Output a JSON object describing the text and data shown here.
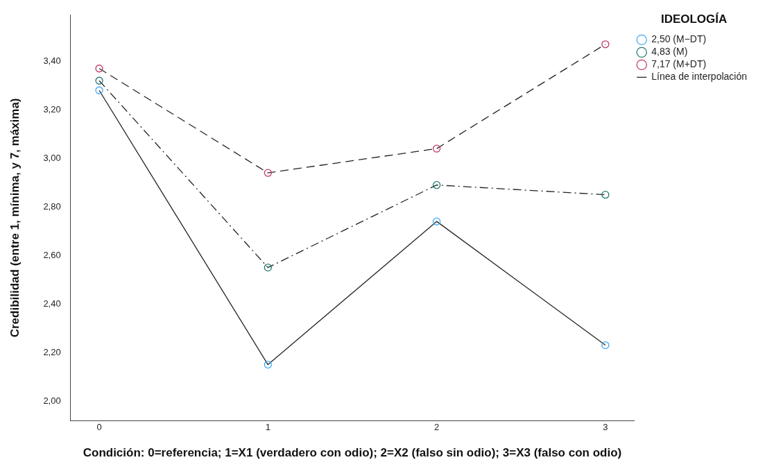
{
  "chart_data": {
    "type": "line",
    "xlabel": "Condición: 0=referencia; 1=X1 (verdadero con odio); 2=X2 (falso sin odio); 3=X3 (falso con odio)",
    "ylabel": "Credibilidad (entre 1, mínima, y 7, máxima)",
    "legend_title": "IDEOLOGÍA",
    "legend": "top right",
    "marker": "circle",
    "grid": false,
    "x": [
      0,
      1,
      2,
      3
    ],
    "xlim": [
      -0.17,
      3.17
    ],
    "xticks": [
      0,
      1,
      2,
      3
    ],
    "ylim": [
      1.92,
      3.59
    ],
    "yticks": [
      {
        "value": 2,
        "label": "2,00"
      },
      {
        "value": 2.2,
        "label": "2,20"
      },
      {
        "value": 2.4,
        "label": "2,40"
      },
      {
        "value": 2.6,
        "label": "2,60"
      },
      {
        "value": 2.8,
        "label": "2,80"
      },
      {
        "value": 3,
        "label": "3,00"
      },
      {
        "value": 3.2,
        "label": "3,20"
      },
      {
        "value": 3.4,
        "label": "3,40"
      }
    ],
    "series": [
      {
        "name": "2,50 (M−DT)",
        "color": "#3fa9f5",
        "line_style": "solid",
        "values": [
          3.28,
          2.15,
          2.74,
          2.23
        ]
      },
      {
        "name": "4,83 (M)",
        "color": "#1f7a70",
        "line_style": "dashdot",
        "values": [
          3.32,
          2.55,
          2.89,
          2.85
        ]
      },
      {
        "name": "7,17 (M+DT)",
        "color": "#c2386a",
        "line_style": "dashed",
        "values": [
          3.37,
          2.94,
          3.04,
          3.47
        ]
      }
    ],
    "annotations": [
      "Línea de interpolación"
    ]
  }
}
